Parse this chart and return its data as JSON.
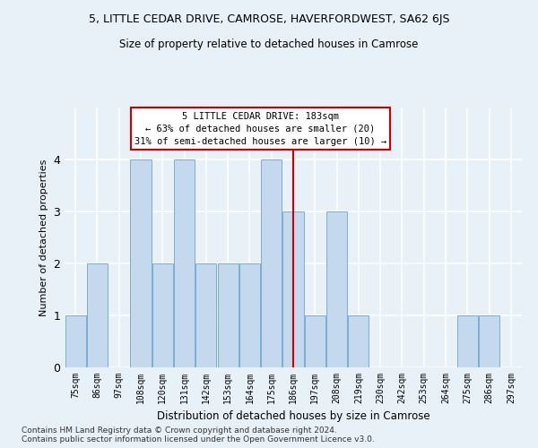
{
  "title": "5, LITTLE CEDAR DRIVE, CAMROSE, HAVERFORDWEST, SA62 6JS",
  "subtitle": "Size of property relative to detached houses in Camrose",
  "xlabel": "Distribution of detached houses by size in Camrose",
  "ylabel": "Number of detached properties",
  "categories": [
    "75sqm",
    "86sqm",
    "97sqm",
    "108sqm",
    "120sqm",
    "131sqm",
    "142sqm",
    "153sqm",
    "164sqm",
    "175sqm",
    "186sqm",
    "197sqm",
    "208sqm",
    "219sqm",
    "230sqm",
    "242sqm",
    "253sqm",
    "264sqm",
    "275sqm",
    "286sqm",
    "297sqm"
  ],
  "values": [
    1,
    2,
    0,
    4,
    2,
    4,
    2,
    2,
    2,
    4,
    3,
    1,
    3,
    1,
    0,
    0,
    0,
    0,
    1,
    1,
    0
  ],
  "bar_color": "#c5d9ee",
  "bar_edge_color": "#7aaed4",
  "red_line_index": 10,
  "annotation_text": "5 LITTLE CEDAR DRIVE: 183sqm\n← 63% of detached houses are smaller (20)\n31% of semi-detached houses are larger (10) →",
  "annotation_box_color": "#ffffff",
  "annotation_border_color": "#cc0000",
  "ylim": [
    0,
    5
  ],
  "yticks": [
    0,
    1,
    2,
    3,
    4
  ],
  "background_color": "#e8f0f8",
  "grid_color": "#ffffff",
  "footnote": "Contains HM Land Registry data © Crown copyright and database right 2024.\nContains public sector information licensed under the Open Government Licence v3.0."
}
